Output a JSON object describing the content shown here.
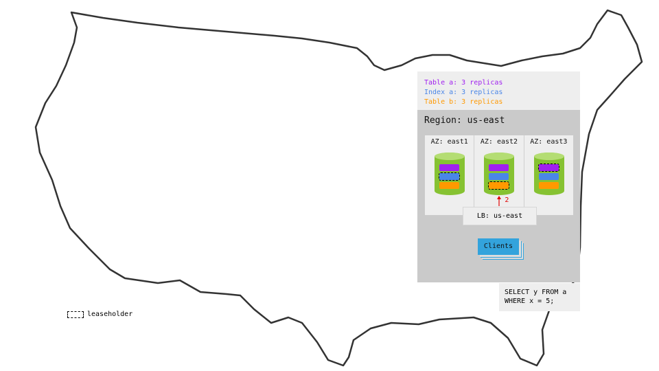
{
  "legend": [
    {
      "text": "Table a: 3 replicas",
      "color": "#a020f0"
    },
    {
      "text": "Index a: 3 replicas",
      "color": "#4a86e8"
    },
    {
      "text": "Table b: 3 replicas",
      "color": "#ff9900"
    }
  ],
  "region": {
    "title": "Region: us-east"
  },
  "azs": [
    {
      "label": "AZ: east1",
      "leaseholder": "index-a"
    },
    {
      "label": "AZ: east2",
      "leaseholder": "table-b"
    },
    {
      "label": "AZ: east3",
      "leaseholder": "table-a"
    }
  ],
  "arrow_label": "2",
  "load_balancer": "LB: us-east",
  "clients": "Clients",
  "query": {
    "line1": "SELECT y FROM a",
    "line2": "WHERE x = 5;"
  },
  "key": {
    "leaseholder": "leaseholder"
  },
  "colors": {
    "table_a": "#a020f0",
    "index_a": "#4a86e8",
    "table_b": "#ff9900",
    "node": "#86c232",
    "clients": "#33a3dc",
    "arrow": "#e00000"
  }
}
